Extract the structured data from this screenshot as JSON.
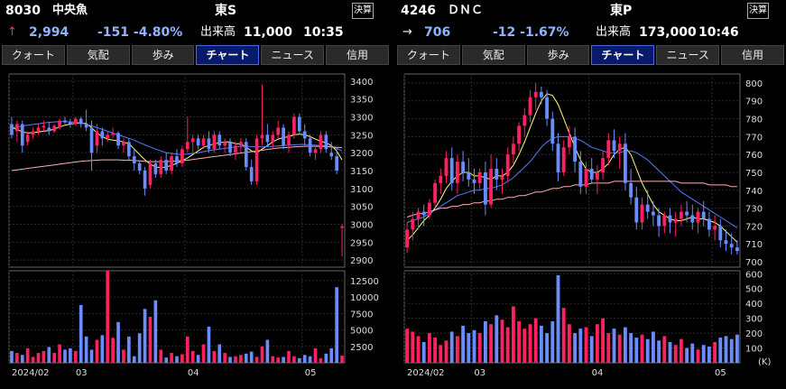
{
  "panels": [
    {
      "id": "left",
      "code": "8030",
      "name": "中央魚",
      "market": "東S",
      "kessan_label": "決算",
      "arrow": "↑",
      "arrow_color": "#ff2d55",
      "price": "2,994",
      "price_color": "#8fb4ff",
      "change": "-151 -4.80%",
      "change_color": "#8fb4ff",
      "volume_label": "出来高",
      "volume": "11,000",
      "time": "10:35",
      "tabs": [
        "クォート",
        "気配",
        "歩み",
        "チャート",
        "ニュース",
        "信用"
      ],
      "active_tab": 3
    },
    {
      "id": "right",
      "code": "4246",
      "name": "ＤＮＣ",
      "market": "東P",
      "kessan_label": "決算",
      "arrow": "→",
      "arrow_color": "#ffffff",
      "price": "706",
      "price_color": "#8fb4ff",
      "change": "-12 -1.67%",
      "change_color": "#8fb4ff",
      "volume_label": "出来高",
      "volume": "173,000",
      "time": "10:46",
      "tabs": [
        "クォート",
        "気配",
        "歩み",
        "チャート",
        "ニュース",
        "信用"
      ],
      "active_tab": 3
    }
  ],
  "chart_data": [
    {
      "type": "candlestick",
      "panel": "left",
      "price_ticks": [
        2900,
        2950,
        3000,
        3050,
        3100,
        3150,
        3200,
        3250,
        3300,
        3350,
        3400
      ],
      "price_range": [
        2880,
        3420
      ],
      "volume_ticks": [
        2500,
        5000,
        7500,
        10000,
        12500
      ],
      "volume_range": [
        0,
        14000
      ],
      "x_labels": [
        {
          "label": "2024/02",
          "index": 0
        },
        {
          "label": "03",
          "index": 12
        },
        {
          "label": "04",
          "index": 33
        },
        {
          "label": "05",
          "index": 55
        }
      ],
      "up_color": "#ff2060",
      "down_color": "#6b8cff",
      "ma_colors": [
        "#ffff80",
        "#5080ff",
        "#ffb0b0"
      ],
      "candles": [
        [
          3280,
          3300,
          3240,
          3250
        ],
        [
          3260,
          3290,
          3230,
          3280
        ],
        [
          3280,
          3290,
          3200,
          3220
        ],
        [
          3230,
          3260,
          3220,
          3250
        ],
        [
          3250,
          3270,
          3240,
          3260
        ],
        [
          3260,
          3280,
          3250,
          3270
        ],
        [
          3270,
          3290,
          3260,
          3275
        ],
        [
          3270,
          3285,
          3250,
          3260
        ],
        [
          3260,
          3280,
          3255,
          3275
        ],
        [
          3270,
          3295,
          3265,
          3290
        ],
        [
          3290,
          3300,
          3280,
          3285
        ],
        [
          3285,
          3295,
          3270,
          3280
        ],
        [
          3280,
          3300,
          3275,
          3295
        ],
        [
          3295,
          3300,
          3270,
          3280
        ],
        [
          3280,
          3320,
          3260,
          3270
        ],
        [
          3270,
          3290,
          3150,
          3200
        ],
        [
          3220,
          3280,
          3200,
          3260
        ],
        [
          3260,
          3270,
          3220,
          3240
        ],
        [
          3240,
          3260,
          3230,
          3250
        ],
        [
          3250,
          3270,
          3240,
          3255
        ],
        [
          3255,
          3260,
          3210,
          3220
        ],
        [
          3220,
          3240,
          3200,
          3230
        ],
        [
          3230,
          3240,
          3180,
          3190
        ],
        [
          3190,
          3210,
          3150,
          3170
        ],
        [
          3170,
          3180,
          3140,
          3150
        ],
        [
          3150,
          3160,
          3080,
          3100
        ],
        [
          3110,
          3180,
          3100,
          3170
        ],
        [
          3170,
          3180,
          3130,
          3140
        ],
        [
          3140,
          3190,
          3130,
          3180
        ],
        [
          3180,
          3200,
          3140,
          3150
        ],
        [
          3150,
          3200,
          3140,
          3190
        ],
        [
          3190,
          3210,
          3160,
          3170
        ],
        [
          3170,
          3220,
          3160,
          3210
        ],
        [
          3210,
          3300,
          3200,
          3230
        ],
        [
          3230,
          3250,
          3200,
          3240
        ],
        [
          3240,
          3250,
          3210,
          3220
        ],
        [
          3220,
          3250,
          3210,
          3240
        ],
        [
          3240,
          3260,
          3200,
          3210
        ],
        [
          3210,
          3260,
          3200,
          3250
        ],
        [
          3250,
          3260,
          3210,
          3220
        ],
        [
          3220,
          3240,
          3200,
          3230
        ],
        [
          3230,
          3240,
          3190,
          3200
        ],
        [
          3200,
          3230,
          3180,
          3220
        ],
        [
          3220,
          3240,
          3200,
          3230
        ],
        [
          3230,
          3240,
          3150,
          3160
        ],
        [
          3160,
          3180,
          3110,
          3120
        ],
        [
          3120,
          3250,
          3110,
          3240
        ],
        [
          3240,
          3390,
          3220,
          3250
        ],
        [
          3250,
          3280,
          3220,
          3230
        ],
        [
          3230,
          3260,
          3210,
          3250
        ],
        [
          3250,
          3290,
          3240,
          3270
        ],
        [
          3270,
          3280,
          3210,
          3220
        ],
        [
          3220,
          3260,
          3200,
          3250
        ],
        [
          3250,
          3310,
          3240,
          3300
        ],
        [
          3300,
          3310,
          3250,
          3260
        ],
        [
          3260,
          3280,
          3220,
          3240
        ],
        [
          3240,
          3250,
          3190,
          3200
        ],
        [
          3200,
          3220,
          3180,
          3210
        ],
        [
          3210,
          3260,
          3200,
          3250
        ],
        [
          3250,
          3260,
          3200,
          3210
        ],
        [
          3200,
          3230,
          3180,
          3190
        ],
        [
          3190,
          3210,
          3140,
          3150
        ],
        [
          2990,
          3000,
          2910,
          2994
        ]
      ],
      "volumes": [
        1800,
        1500,
        1200,
        2200,
        900,
        1500,
        1800,
        2400,
        1500,
        2800,
        2000,
        2200,
        1800,
        8800,
        4000,
        2000,
        3500,
        4200,
        14000,
        3800,
        6200,
        2000,
        4000,
        1000,
        4500,
        8200,
        7000,
        9500,
        2000,
        800,
        1500,
        1000,
        1300,
        4000,
        1800,
        1200,
        2800,
        5500,
        1800,
        2800,
        1500,
        900,
        1000,
        1200,
        1400,
        1700,
        900,
        2500,
        3500,
        1000,
        800,
        900,
        1800,
        1000,
        700,
        1200,
        1000,
        2200,
        700,
        1400,
        2200,
        11500,
        1100
      ],
      "ma_short": [
        3270,
        3265,
        3258,
        3255,
        3256,
        3258,
        3260,
        3262,
        3266,
        3272,
        3277,
        3280,
        3282,
        3283,
        3282,
        3270,
        3255,
        3245,
        3238,
        3235,
        3233,
        3230,
        3225,
        3210,
        3195,
        3180,
        3168,
        3160,
        3158,
        3160,
        3165,
        3170,
        3178,
        3185,
        3195,
        3205,
        3215,
        3220,
        3225,
        3228,
        3230,
        3230,
        3225,
        3225,
        3215,
        3205,
        3200,
        3210,
        3220,
        3230,
        3238,
        3242,
        3245,
        3250,
        3252,
        3250,
        3245,
        3238,
        3232,
        3228,
        3220,
        3205,
        3180
      ],
      "ma_mid": [
        3270,
        3272,
        3275,
        3277,
        3279,
        3281,
        3283,
        3285,
        3286,
        3287,
        3287,
        3286,
        3285,
        3283,
        3280,
        3275,
        3270,
        3265,
        3260,
        3255,
        3250,
        3245,
        3240,
        3235,
        3228,
        3222,
        3216,
        3210,
        3205,
        3200,
        3198,
        3196,
        3195,
        3196,
        3198,
        3200,
        3203,
        3206,
        3208,
        3210,
        3212,
        3214,
        3216,
        3218,
        3218,
        3217,
        3216,
        3216,
        3217,
        3218,
        3219,
        3220,
        3221,
        3222,
        3223,
        3223,
        3222,
        3221,
        3220,
        3219,
        3217,
        3212,
        3205
      ],
      "ma_long": [
        3150,
        3152,
        3154,
        3156,
        3158,
        3160,
        3162,
        3164,
        3166,
        3168,
        3170,
        3172,
        3174,
        3176,
        3177,
        3178,
        3179,
        3180,
        3180,
        3180,
        3180,
        3179,
        3179,
        3178,
        3177,
        3176,
        3175,
        3175,
        3175,
        3175,
        3176,
        3177,
        3178,
        3179,
        3181,
        3183,
        3185,
        3187,
        3189,
        3191,
        3193,
        3195,
        3197,
        3199,
        3201,
        3203,
        3205,
        3207,
        3209,
        3211,
        3213,
        3214,
        3215,
        3216,
        3217,
        3218,
        3218,
        3218,
        3218,
        3217,
        3216,
        3215,
        3214
      ]
    },
    {
      "type": "candlestick",
      "panel": "right",
      "price_ticks": [
        700,
        710,
        720,
        730,
        740,
        750,
        760,
        770,
        780,
        790,
        800
      ],
      "price_range": [
        697,
        805
      ],
      "volume_ticks": [
        100,
        200,
        300,
        400,
        500,
        600
      ],
      "volume_range": [
        0,
        620
      ],
      "volume_unit": "(K)",
      "x_labels": [
        {
          "label": "2024/02",
          "index": 0
        },
        {
          "label": "03",
          "index": 12
        },
        {
          "label": "04",
          "index": 33
        },
        {
          "label": "05",
          "index": 55
        }
      ],
      "up_color": "#ff2060",
      "down_color": "#6b8cff",
      "ma_colors": [
        "#ffff80",
        "#5080ff",
        "#ffb0b0"
      ],
      "candles": [
        [
          708,
          722,
          705,
          718
        ],
        [
          718,
          728,
          712,
          724
        ],
        [
          724,
          730,
          718,
          728
        ],
        [
          728,
          732,
          720,
          726
        ],
        [
          726,
          735,
          724,
          733
        ],
        [
          733,
          746,
          730,
          744
        ],
        [
          744,
          752,
          738,
          748
        ],
        [
          748,
          762,
          744,
          758
        ],
        [
          758,
          764,
          740,
          744
        ],
        [
          744,
          760,
          738,
          756
        ],
        [
          756,
          762,
          745,
          750
        ],
        [
          750,
          758,
          742,
          746
        ],
        [
          746,
          752,
          738,
          744
        ],
        [
          744,
          752,
          740,
          750
        ],
        [
          750,
          756,
          726,
          732
        ],
        [
          732,
          760,
          730,
          752
        ],
        [
          752,
          758,
          740,
          746
        ],
        [
          746,
          752,
          738,
          748
        ],
        [
          748,
          764,
          745,
          760
        ],
        [
          760,
          770,
          755,
          766
        ],
        [
          766,
          778,
          762,
          776
        ],
        [
          776,
          786,
          770,
          782
        ],
        [
          782,
          796,
          778,
          792
        ],
        [
          792,
          800,
          785,
          795
        ],
        [
          795,
          798,
          788,
          792
        ],
        [
          792,
          796,
          776,
          780
        ],
        [
          780,
          784,
          762,
          766
        ],
        [
          766,
          772,
          745,
          750
        ],
        [
          750,
          768,
          748,
          764
        ],
        [
          764,
          776,
          760,
          770
        ],
        [
          770,
          775,
          750,
          756
        ],
        [
          756,
          762,
          738,
          742
        ],
        [
          742,
          756,
          738,
          752
        ],
        [
          752,
          758,
          744,
          746
        ],
        [
          746,
          754,
          738,
          750
        ],
        [
          750,
          762,
          746,
          758
        ],
        [
          758,
          772,
          754,
          768
        ],
        [
          768,
          774,
          758,
          762
        ],
        [
          762,
          770,
          752,
          766
        ],
        [
          766,
          772,
          740,
          744
        ],
        [
          744,
          752,
          732,
          736
        ],
        [
          736,
          742,
          718,
          722
        ],
        [
          722,
          736,
          718,
          732
        ],
        [
          732,
          740,
          724,
          728
        ],
        [
          728,
          734,
          720,
          726
        ],
        [
          726,
          730,
          714,
          720
        ],
        [
          720,
          728,
          716,
          726
        ],
        [
          726,
          730,
          716,
          722
        ],
        [
          722,
          728,
          714,
          724
        ],
        [
          724,
          732,
          720,
          728
        ],
        [
          728,
          734,
          722,
          726
        ],
        [
          726,
          732,
          718,
          722
        ],
        [
          722,
          730,
          716,
          728
        ],
        [
          728,
          734,
          720,
          724
        ],
        [
          724,
          728,
          714,
          718
        ],
        [
          718,
          726,
          712,
          720
        ],
        [
          720,
          724,
          708,
          712
        ],
        [
          712,
          718,
          706,
          710
        ],
        [
          710,
          716,
          704,
          708
        ],
        [
          708,
          712,
          704,
          706
        ]
      ],
      "volumes": [
        230,
        210,
        180,
        140,
        200,
        170,
        120,
        150,
        210,
        180,
        250,
        200,
        220,
        200,
        280,
        260,
        320,
        290,
        240,
        380,
        280,
        230,
        260,
        300,
        250,
        200,
        280,
        590,
        370,
        260,
        200,
        230,
        240,
        180,
        260,
        300,
        200,
        230,
        190,
        240,
        200,
        170,
        190,
        160,
        210,
        150,
        180,
        140,
        120,
        160,
        100,
        130,
        90,
        120,
        110,
        140,
        170,
        180,
        160,
        190
      ],
      "ma_short": [
        712,
        715,
        719,
        723,
        726,
        730,
        735,
        741,
        745,
        748,
        750,
        750,
        748,
        748,
        747,
        746,
        748,
        748,
        750,
        754,
        760,
        767,
        775,
        783,
        790,
        794,
        793,
        788,
        780,
        772,
        764,
        757,
        752,
        750,
        750,
        752,
        755,
        760,
        763,
        764,
        760,
        752,
        744,
        738,
        732,
        728,
        726,
        724,
        723,
        723,
        724,
        725,
        724,
        724,
        723,
        722,
        720,
        717,
        714,
        711
      ],
      "ma_mid": [
        722,
        723,
        724,
        725,
        727,
        729,
        731,
        733,
        735,
        737,
        738,
        739,
        740,
        740,
        741,
        741,
        742,
        743,
        745,
        747,
        750,
        753,
        756,
        760,
        764,
        767,
        769,
        770,
        770,
        770,
        769,
        768,
        766,
        764,
        763,
        762,
        761,
        761,
        761,
        762,
        762,
        761,
        759,
        757,
        754,
        751,
        748,
        745,
        742,
        739,
        737,
        735,
        733,
        731,
        729,
        727,
        725,
        723,
        721,
        719
      ],
      "ma_long": [
        725,
        726,
        727,
        727,
        728,
        729,
        730,
        730,
        731,
        731,
        732,
        732,
        733,
        733,
        734,
        734,
        735,
        735,
        736,
        736,
        737,
        737,
        738,
        739,
        739,
        740,
        741,
        741,
        742,
        742,
        743,
        743,
        743,
        744,
        744,
        744,
        744,
        745,
        745,
        745,
        745,
        745,
        745,
        745,
        745,
        745,
        745,
        745,
        745,
        744,
        744,
        744,
        744,
        744,
        743,
        743,
        743,
        743,
        742,
        742
      ]
    }
  ]
}
